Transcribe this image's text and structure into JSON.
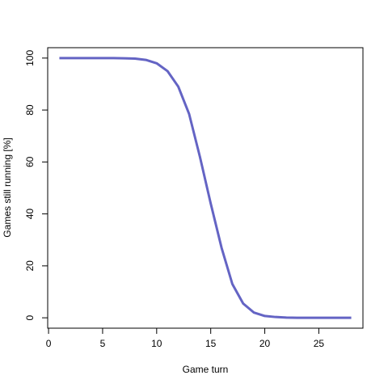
{
  "chart_data": {
    "type": "line",
    "x_label": "Game turn",
    "y_label": "Games still running [%]",
    "x": [
      1,
      2,
      3,
      4,
      5,
      6,
      7,
      8,
      9,
      10,
      11,
      12,
      13,
      14,
      15,
      16,
      17,
      18,
      19,
      20,
      21,
      22,
      23,
      24,
      25,
      26,
      27,
      28
    ],
    "series": [
      {
        "name": "Games still running",
        "color": "#6464c4",
        "values": [
          100,
          100,
          100,
          100,
          100,
          100,
          99.9,
          99.8,
          99.3,
          98,
          95,
          89,
          78.5,
          62,
          44,
          27,
          13,
          5.5,
          2,
          0.7,
          0.3,
          0.1,
          0,
          0,
          0,
          0,
          0,
          0
        ]
      }
    ],
    "xlim": [
      -0.08,
      29.08
    ],
    "xticks": [
      0,
      5,
      10,
      15,
      20,
      25
    ],
    "ylim": [
      -4,
      104
    ],
    "yticks": [
      0,
      20,
      40,
      60,
      80,
      100
    ]
  }
}
